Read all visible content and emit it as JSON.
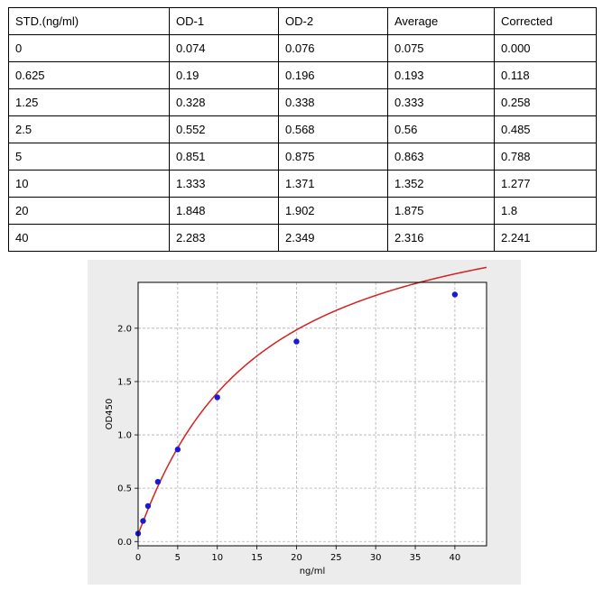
{
  "table": {
    "headers": [
      "STD.(ng/ml)",
      "OD-1",
      "OD-2",
      "Average",
      "Corrected"
    ],
    "rows": [
      [
        "0",
        "0.074",
        "0.076",
        "0.075",
        "0.000"
      ],
      [
        "0.625",
        "0.19",
        "0.196",
        "0.193",
        "0.118"
      ],
      [
        "1.25",
        "0.328",
        "0.338",
        "0.333",
        "0.258"
      ],
      [
        "2.5",
        "0.552",
        "0.568",
        "0.56",
        "0.485"
      ],
      [
        "5",
        "0.851",
        "0.875",
        "0.863",
        "0.788"
      ],
      [
        "10",
        "1.333",
        "1.371",
        "1.352",
        "1.277"
      ],
      [
        "20",
        "1.848",
        "1.902",
        "1.875",
        "1.8"
      ],
      [
        "40",
        "2.283",
        "2.349",
        "2.316",
        "2.241"
      ]
    ]
  },
  "chart_data": {
    "type": "scatter",
    "xlabel": "ng/ml",
    "ylabel": "OD450",
    "xlim": [
      0,
      44
    ],
    "ylim": [
      -0.04,
      2.43
    ],
    "xticks": [
      "0",
      "5",
      "10",
      "15",
      "20",
      "25",
      "30",
      "35",
      "40"
    ],
    "yticks": [
      "0.0",
      "0.5",
      "1.0",
      "1.5",
      "2.0"
    ],
    "grid": true,
    "series": [
      {
        "x": [
          0,
          0.625,
          1.25,
          2.5,
          5,
          10,
          20,
          40
        ],
        "y": [
          0.075,
          0.193,
          0.333,
          0.56,
          0.863,
          1.352,
          1.875,
          2.316
        ],
        "marker_color": "#1a1ad6",
        "fit_color": "#d62020"
      }
    ]
  }
}
